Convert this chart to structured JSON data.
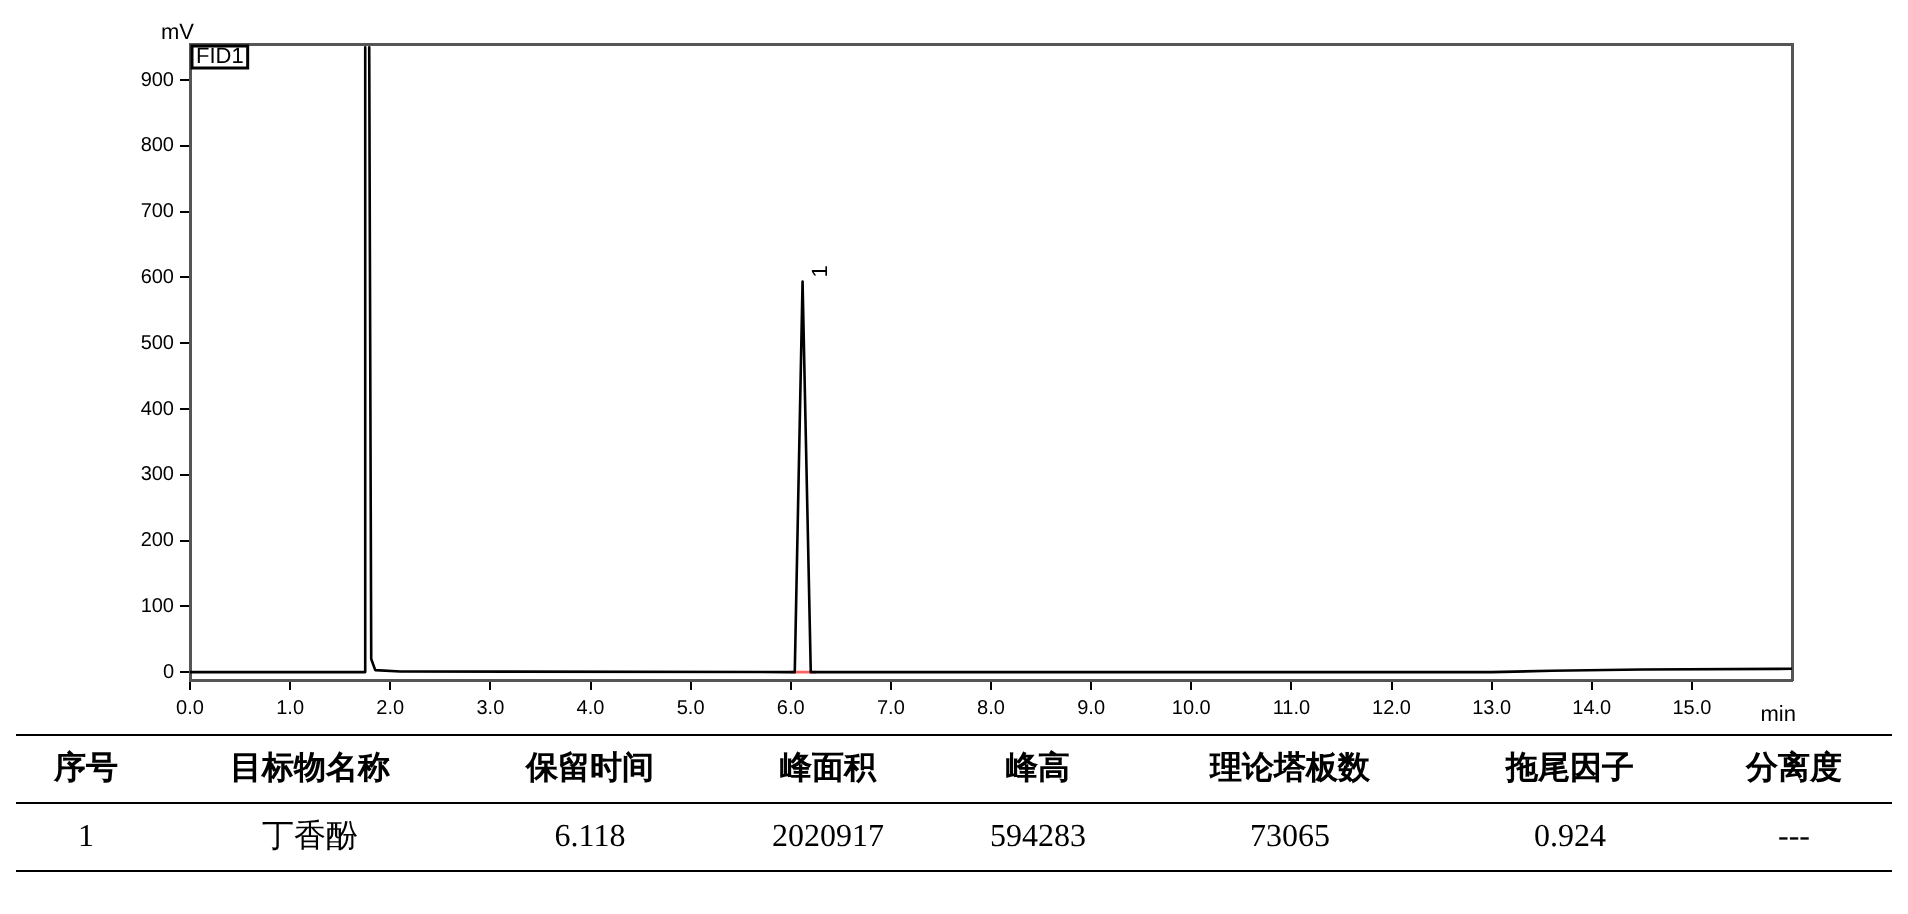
{
  "chart_data": {
    "type": "line",
    "xlabel": "min",
    "ylabel": "mV",
    "xlim": [
      0,
      16
    ],
    "ylim": [
      -12,
      955
    ],
    "xticks": [
      {
        "value": 0,
        "label": "0.0"
      },
      {
        "value": 1,
        "label": "1.0"
      },
      {
        "value": 2,
        "label": "2.0"
      },
      {
        "value": 3,
        "label": "3.0"
      },
      {
        "value": 4,
        "label": "4.0"
      },
      {
        "value": 5,
        "label": "5.0"
      },
      {
        "value": 6,
        "label": "6.0"
      },
      {
        "value": 7,
        "label": "7.0"
      },
      {
        "value": 8,
        "label": "8.0"
      },
      {
        "value": 9,
        "label": "9.0"
      },
      {
        "value": 10,
        "label": "10.0"
      },
      {
        "value": 11,
        "label": "11.0"
      },
      {
        "value": 12,
        "label": "12.0"
      },
      {
        "value": 13,
        "label": "13.0"
      },
      {
        "value": 14,
        "label": "14.0"
      },
      {
        "value": 15,
        "label": "15.0"
      }
    ],
    "yticks": [
      0,
      100,
      200,
      300,
      400,
      500,
      600,
      700,
      800,
      900
    ],
    "grid": false,
    "legend": false,
    "marker": "none",
    "line_style": "solid",
    "series": [
      {
        "color": "#000000",
        "x": [
          0,
          1.74,
          1.75,
          1.77,
          1.79,
          1.81,
          1.85,
          2.1,
          5.95,
          6.04,
          6.118,
          6.2,
          13,
          13.6,
          14.5,
          16
        ],
        "values": [
          0,
          0,
          950,
          null,
          950,
          20,
          3,
          1,
          0,
          0,
          594,
          0,
          0,
          2,
          4,
          5
        ]
      },
      {
        "color": "#ff6060",
        "x": [
          6.0,
          6.25
        ],
        "values": [
          0,
          0
        ]
      }
    ],
    "annotations": [
      "FID1",
      {
        "text": "1",
        "x": 6.118,
        "y": 594
      },
      "序号",
      "目标物名称",
      "保留时间",
      "峰面积",
      "峰高",
      "理论塔板数",
      "拖尾因子",
      "分离度",
      "1",
      "丁香酚",
      "6.118",
      "2020917",
      "594283",
      "73065",
      "0.924",
      "---"
    ]
  }
}
